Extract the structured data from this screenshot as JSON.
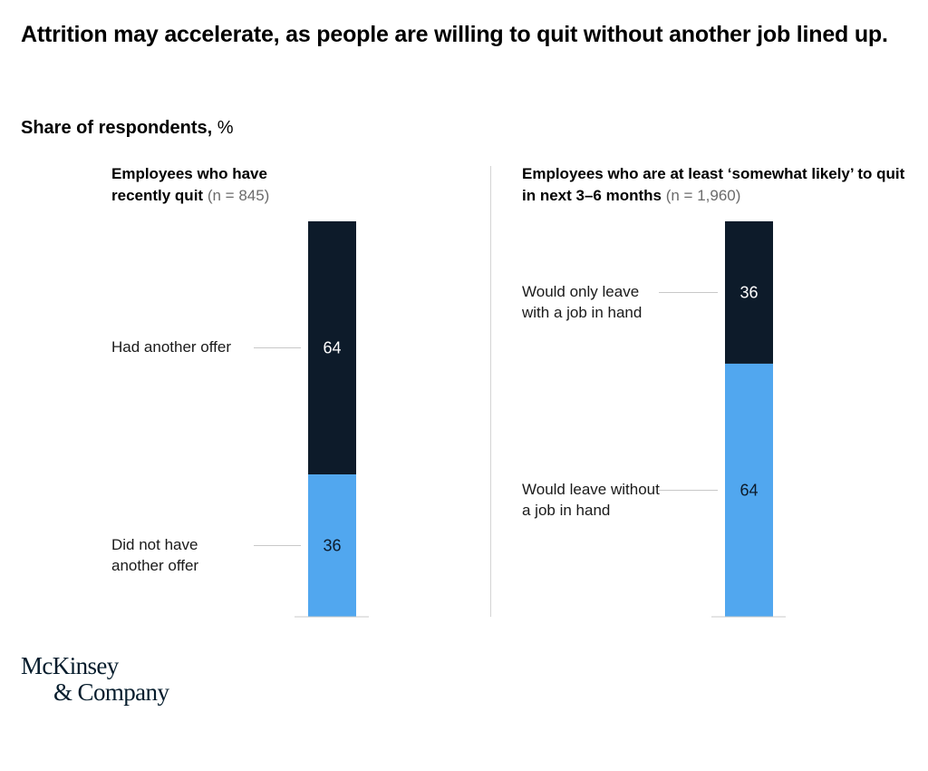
{
  "title": "Attrition may accelerate, as people are willing to quit without another job lined up.",
  "subtitle": {
    "main": "Share of respondents,",
    "unit": "%"
  },
  "colors": {
    "dark": "#0d1b2a",
    "light": "#51a7ef",
    "leader": "#c8c8c8",
    "axis": "#c8c8c8"
  },
  "logo": {
    "line1": "McKinsey",
    "line2": "& Company"
  },
  "chart_data": [
    {
      "type": "bar",
      "stacked": true,
      "title": "Employees who have recently quit",
      "sample": "(n = 845)",
      "ylim": [
        0,
        100
      ],
      "series": [
        {
          "name": "Had another offer",
          "value": 64,
          "color": "#0d1b2a"
        },
        {
          "name": "Did not have another offer",
          "value": 36,
          "color": "#51a7ef"
        }
      ]
    },
    {
      "type": "bar",
      "stacked": true,
      "title": "Employees who are at least ‘somewhat likely’ to quit in next 3–6 months",
      "sample": "(n = 1,960)",
      "ylim": [
        0,
        100
      ],
      "series": [
        {
          "name": "Would only leave with a job in hand",
          "value": 36,
          "color": "#0d1b2a"
        },
        {
          "name": "Would leave without a job in hand",
          "value": 64,
          "color": "#51a7ef"
        }
      ]
    }
  ]
}
